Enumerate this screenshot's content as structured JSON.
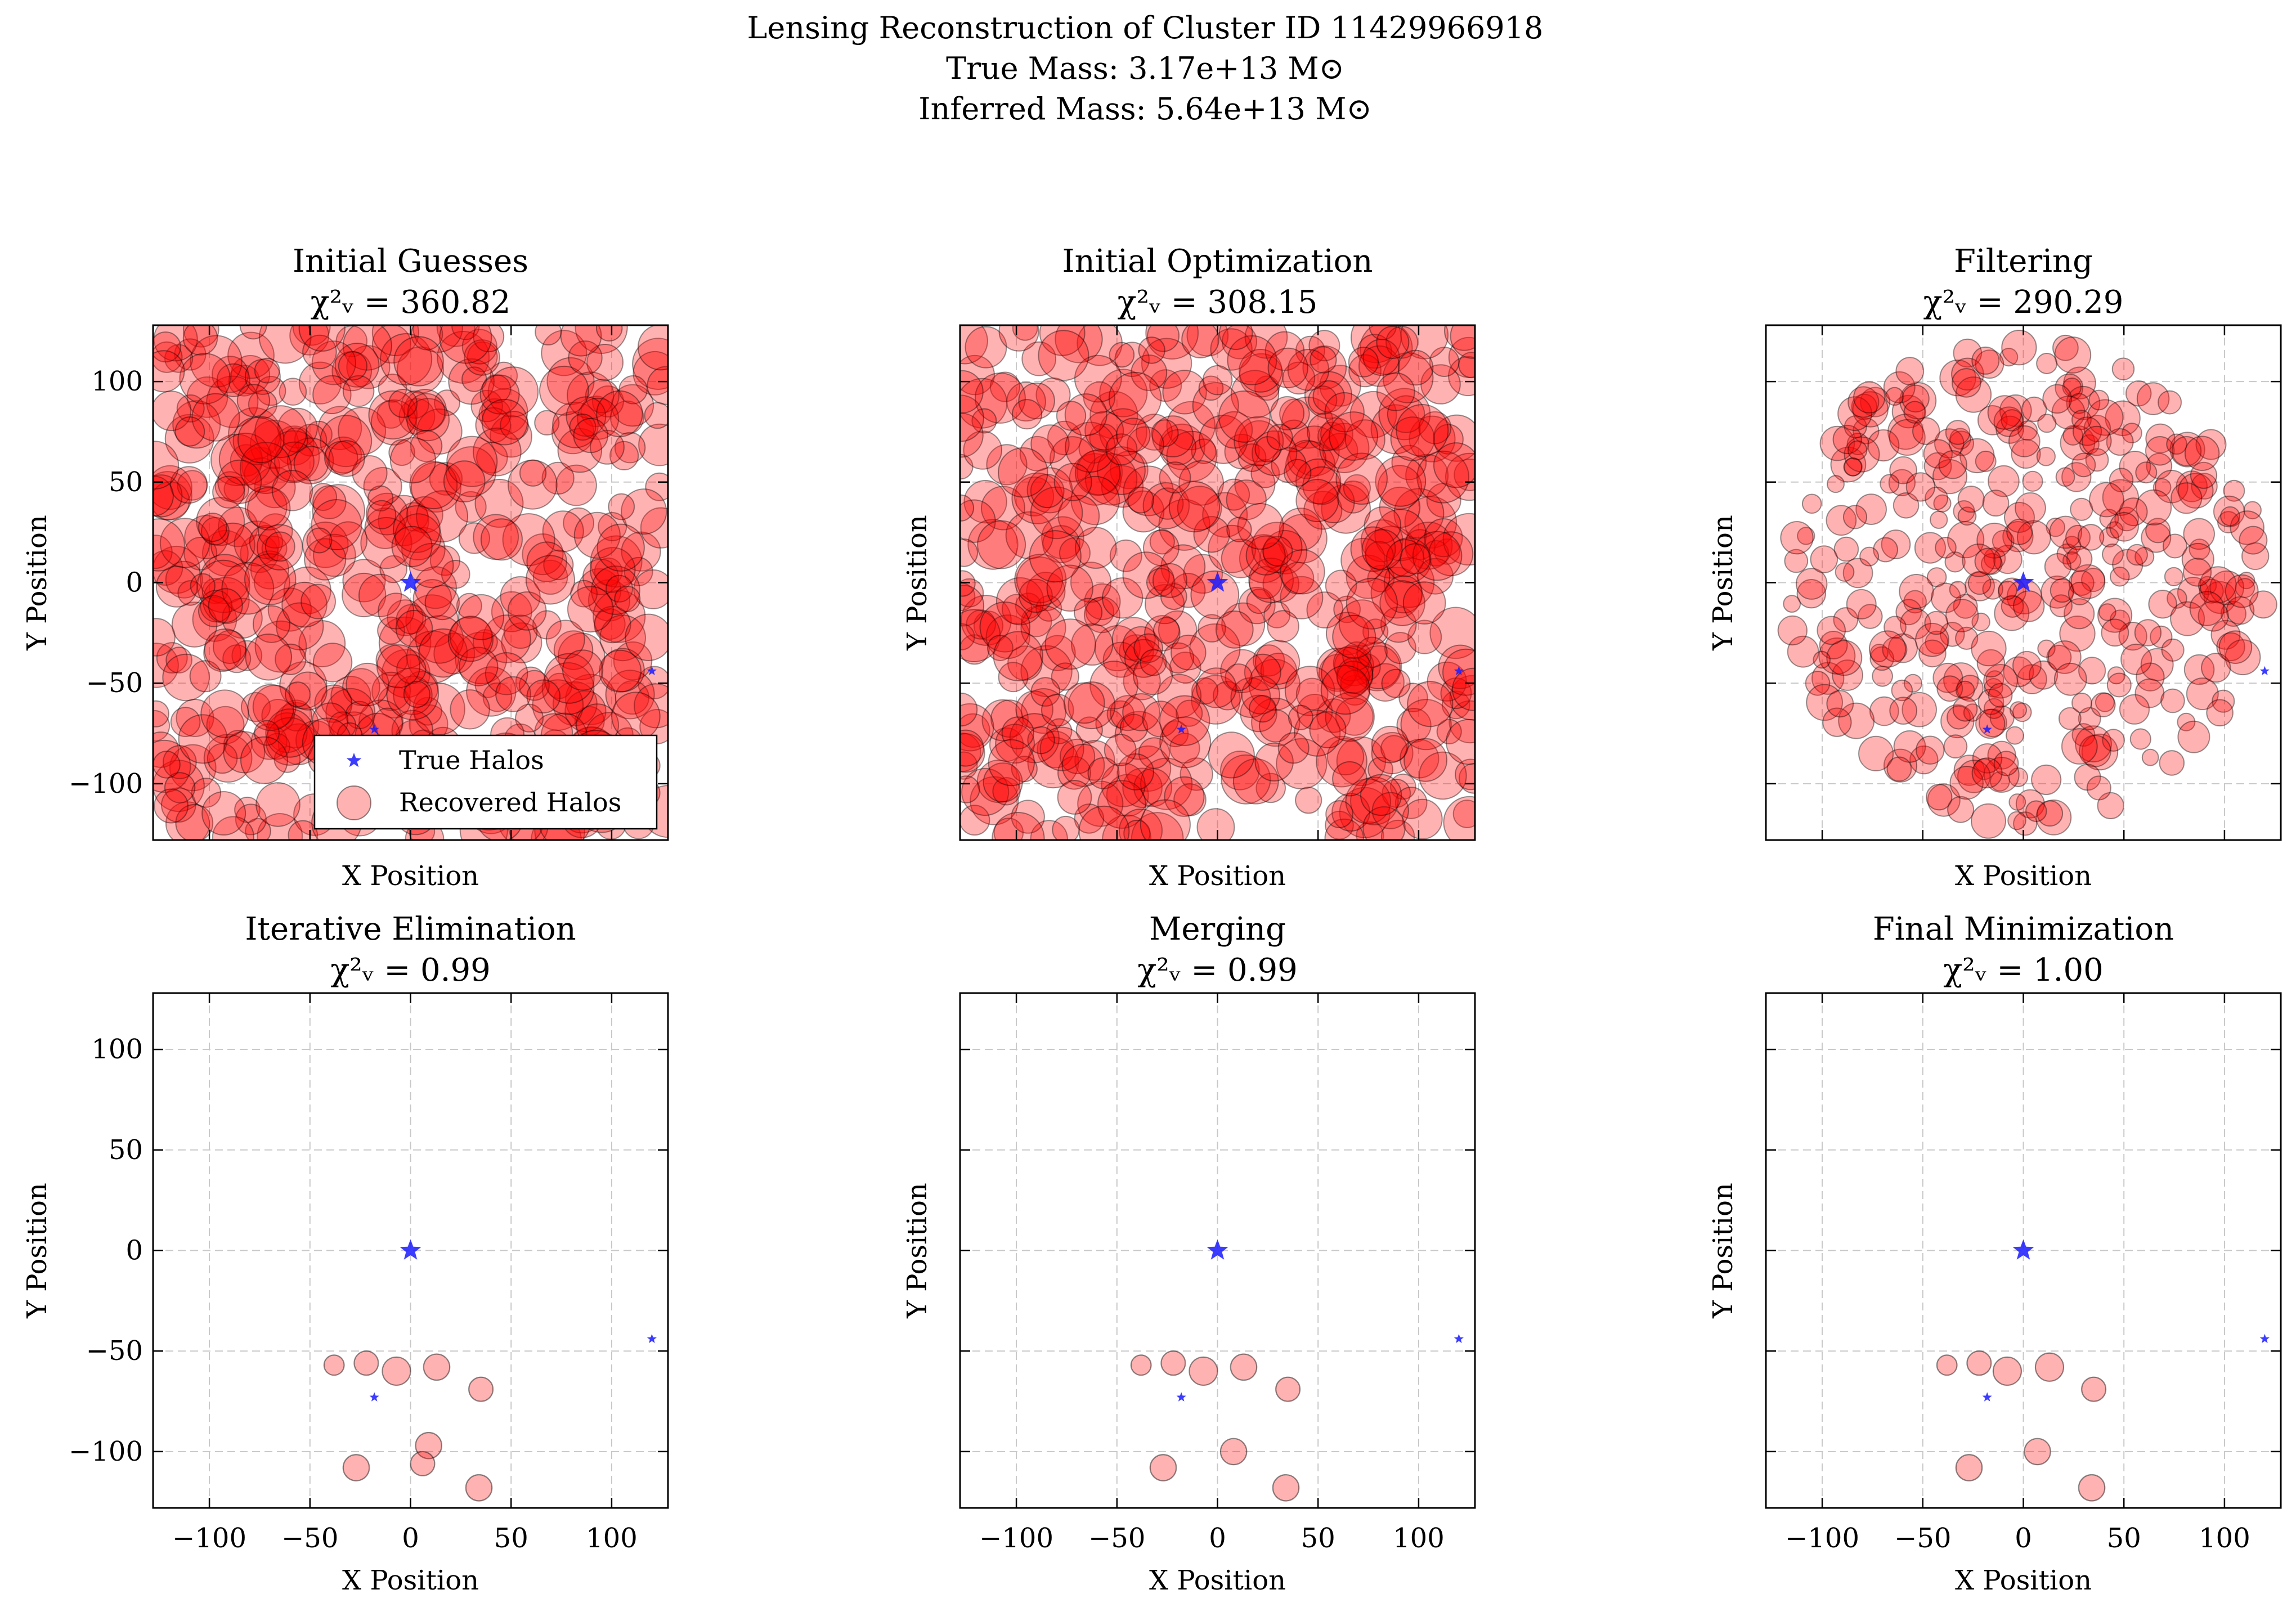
{
  "figure": {
    "title_lines": [
      "Lensing Reconstruction of Cluster ID 11429966918",
      "True Mass: 3.17e+13 M⊙",
      "Inferred Mass: 5.64e+13 M⊙"
    ]
  },
  "colors": {
    "true_halo": "#1a1aff",
    "recovered_halo": "#ff0000",
    "grid": "#c8c8c8"
  },
  "chart_data": [
    {
      "type": "scatter",
      "title": "Initial Guesses",
      "chi2_label": "χ²ᵥ = 360.82",
      "xlabel": "X Position",
      "ylabel": "Y Position",
      "xlim": [
        -128,
        128
      ],
      "ylim": [
        -128,
        128
      ],
      "xticks": [
        -100,
        -50,
        0,
        50,
        100
      ],
      "yticks": [
        -100,
        -50,
        0,
        50,
        100
      ],
      "grid": true,
      "legend": {
        "placement": "lower-right",
        "entries": [
          "True Halos",
          "Recovered Halos"
        ]
      },
      "true_halos": [
        {
          "x": 0,
          "y": 0,
          "size": "large"
        },
        {
          "x": -18,
          "y": -73,
          "size": "small"
        },
        {
          "x": 120,
          "y": -44,
          "size": "small"
        }
      ],
      "recovered_halos": {
        "approx_count": 520,
        "alpha": 0.3,
        "x_range": [
          -128,
          128
        ],
        "y_range": [
          -128,
          128
        ],
        "note_radius": "large"
      }
    },
    {
      "type": "scatter",
      "title": "Initial Optimization",
      "chi2_label": "χ²ᵥ = 308.15",
      "xlabel": "X Position",
      "ylabel": "Y Position",
      "xlim": [
        -128,
        128
      ],
      "ylim": [
        -128,
        128
      ],
      "xticks": [
        -100,
        -50,
        0,
        50,
        100
      ],
      "yticks": [
        -100,
        -50,
        0,
        50,
        100
      ],
      "grid": true,
      "true_halos": [
        {
          "x": 0,
          "y": 0,
          "size": "large"
        },
        {
          "x": -18,
          "y": -73,
          "size": "small"
        },
        {
          "x": 120,
          "y": -44,
          "size": "small"
        }
      ],
      "recovered_halos": {
        "approx_count": 520,
        "alpha": 0.3,
        "x_range": [
          -128,
          128
        ],
        "y_range": [
          -128,
          128
        ]
      }
    },
    {
      "type": "scatter",
      "title": "Filtering",
      "chi2_label": "χ²ᵥ = 290.29",
      "xlabel": "X Position",
      "ylabel": "Y Position",
      "xlim": [
        -128,
        128
      ],
      "ylim": [
        -128,
        128
      ],
      "xticks": [
        -100,
        -50,
        0,
        50,
        100
      ],
      "yticks": [
        -100,
        -50,
        0,
        50,
        100
      ],
      "grid": true,
      "true_halos": [
        {
          "x": 0,
          "y": 0,
          "size": "large"
        },
        {
          "x": -18,
          "y": -73,
          "size": "small"
        },
        {
          "x": 120,
          "y": -44,
          "size": "small"
        }
      ],
      "recovered_halos": {
        "approx_count": 380,
        "alpha": 0.3,
        "x_range": [
          -120,
          120
        ],
        "y_range": [
          -120,
          120
        ]
      }
    },
    {
      "type": "scatter",
      "title": "Iterative Elimination",
      "chi2_label": "χ²ᵥ = 0.99",
      "xlabel": "X Position",
      "ylabel": "Y Position",
      "xlim": [
        -128,
        128
      ],
      "ylim": [
        -128,
        128
      ],
      "xticks": [
        -100,
        -50,
        0,
        50,
        100
      ],
      "yticks": [
        -100,
        -50,
        0,
        50,
        100
      ],
      "grid": true,
      "true_halos": [
        {
          "x": 0,
          "y": 0,
          "size": "large"
        },
        {
          "x": -18,
          "y": -73,
          "size": "small"
        },
        {
          "x": 120,
          "y": -44,
          "size": "small"
        }
      ],
      "recovered_halos_list": [
        {
          "x": -38,
          "y": -57,
          "r": 5
        },
        {
          "x": -22,
          "y": -56,
          "r": 6
        },
        {
          "x": -7,
          "y": -60,
          "r": 7
        },
        {
          "x": 13,
          "y": -58,
          "r": 6.5
        },
        {
          "x": 35,
          "y": -69,
          "r": 6
        },
        {
          "x": -27,
          "y": -108,
          "r": 6.5
        },
        {
          "x": 9,
          "y": -97,
          "r": 6.5
        },
        {
          "x": 6,
          "y": -106,
          "r": 6
        },
        {
          "x": 34,
          "y": -118,
          "r": 6.5
        }
      ]
    },
    {
      "type": "scatter",
      "title": "Merging",
      "chi2_label": "χ²ᵥ = 0.99",
      "xlabel": "X Position",
      "ylabel": "Y Position",
      "xlim": [
        -128,
        128
      ],
      "ylim": [
        -128,
        128
      ],
      "xticks": [
        -100,
        -50,
        0,
        50,
        100
      ],
      "yticks": [
        -100,
        -50,
        0,
        50,
        100
      ],
      "grid": true,
      "true_halos": [
        {
          "x": 0,
          "y": 0,
          "size": "large"
        },
        {
          "x": -18,
          "y": -73,
          "size": "small"
        },
        {
          "x": 120,
          "y": -44,
          "size": "small"
        }
      ],
      "recovered_halos_list": [
        {
          "x": -38,
          "y": -57,
          "r": 5
        },
        {
          "x": -22,
          "y": -56,
          "r": 6
        },
        {
          "x": -7,
          "y": -60,
          "r": 7
        },
        {
          "x": 13,
          "y": -58,
          "r": 6.5
        },
        {
          "x": 35,
          "y": -69,
          "r": 6
        },
        {
          "x": -27,
          "y": -108,
          "r": 6.5
        },
        {
          "x": 8,
          "y": -100,
          "r": 6.5
        },
        {
          "x": 34,
          "y": -118,
          "r": 6.5
        }
      ]
    },
    {
      "type": "scatter",
      "title": "Final Minimization",
      "chi2_label": "χ²ᵥ = 1.00",
      "xlabel": "X Position",
      "ylabel": "Y Position",
      "xlim": [
        -128,
        128
      ],
      "ylim": [
        -128,
        128
      ],
      "xticks": [
        -100,
        -50,
        0,
        50,
        100
      ],
      "yticks": [
        -100,
        -50,
        0,
        50,
        100
      ],
      "grid": true,
      "true_halos": [
        {
          "x": 0,
          "y": 0,
          "size": "large"
        },
        {
          "x": -18,
          "y": -73,
          "size": "small"
        },
        {
          "x": 120,
          "y": -44,
          "size": "small"
        }
      ],
      "recovered_halos_list": [
        {
          "x": -38,
          "y": -57,
          "r": 5
        },
        {
          "x": -22,
          "y": -56,
          "r": 6
        },
        {
          "x": -8,
          "y": -60,
          "r": 7
        },
        {
          "x": 13,
          "y": -58,
          "r": 7
        },
        {
          "x": 35,
          "y": -69,
          "r": 6
        },
        {
          "x": -27,
          "y": -108,
          "r": 6.5
        },
        {
          "x": 7,
          "y": -100,
          "r": 6.5
        },
        {
          "x": 34,
          "y": -118,
          "r": 6.5
        }
      ]
    }
  ]
}
